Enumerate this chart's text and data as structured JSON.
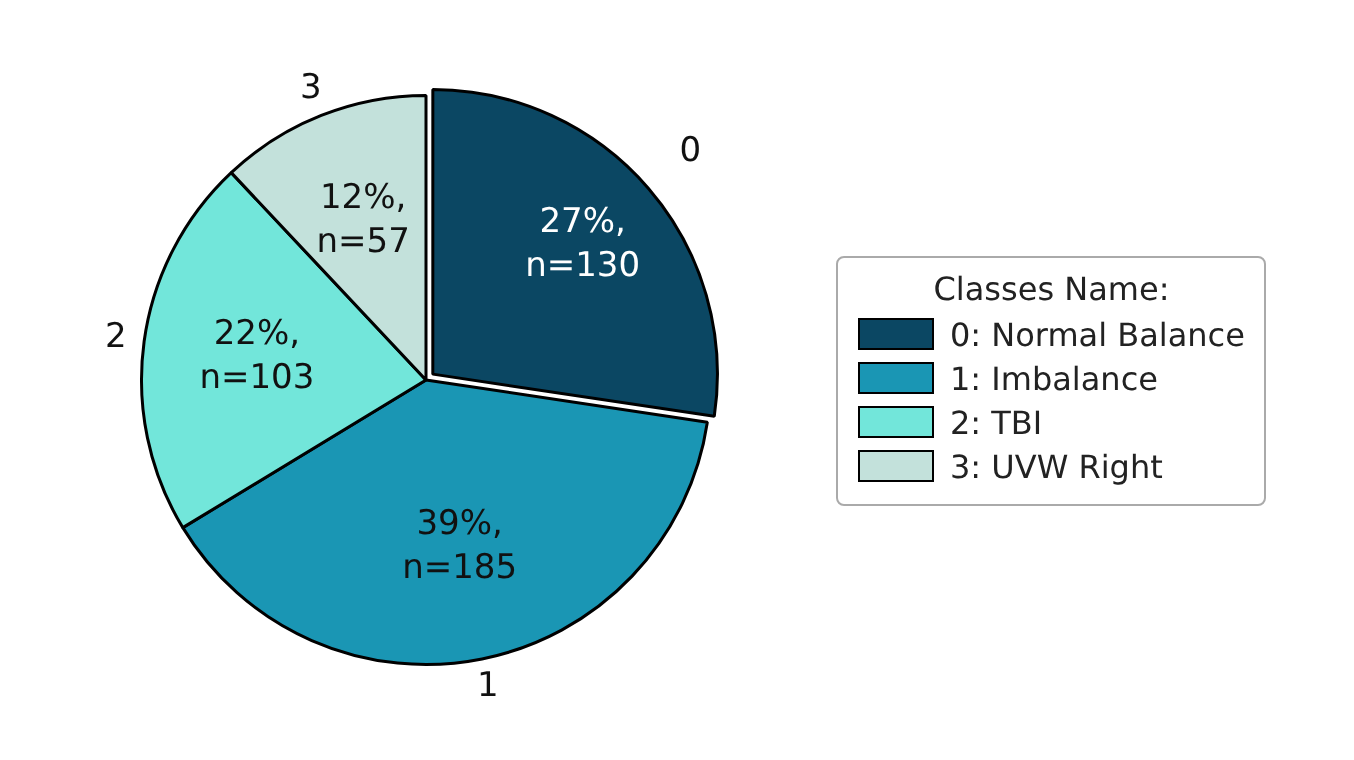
{
  "chart_data": {
    "type": "pie",
    "legend_title": "Classes Name:",
    "legend": "right",
    "categories": [
      "0: Normal Balance",
      "1: Imbalance",
      "2: TBI",
      "3: UVW Right"
    ],
    "values": [
      130,
      185,
      103,
      57
    ],
    "colors": [
      "#0b4763",
      "#1a96b4",
      "#72e6da",
      "#c3e1db"
    ],
    "value_labels": [
      "27%,\nn=130",
      "39%,\nn=185",
      "22%,\nn=103",
      "12%,\nn=57"
    ],
    "annotations": [
      {
        "text": "0",
        "x": "0: Normal Balance"
      },
      {
        "text": "1",
        "x": "1: Imbalance"
      },
      {
        "text": "2",
        "x": "2: TBI"
      },
      {
        "text": "3",
        "x": "3: UVW Right"
      }
    ]
  }
}
